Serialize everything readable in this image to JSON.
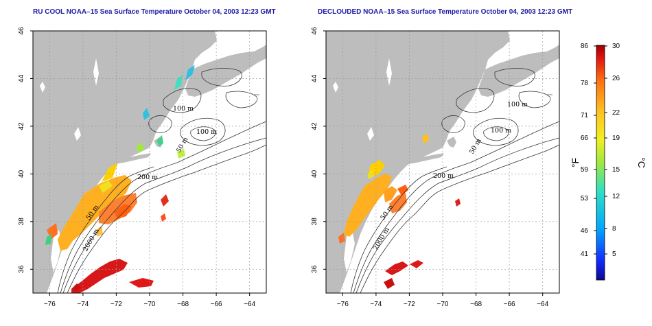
{
  "maps": [
    {
      "title": "RU COOL NOAA–15 Sea Surface Temperature October 04, 2003 12:23 GMT"
    },
    {
      "title": "DECLOUDED NOAA–15 Sea Surface Temperature October 04, 2003 12:23 GMT"
    }
  ],
  "axes": {
    "x_ticks": [
      "−76",
      "−74",
      "−72",
      "−70",
      "−68",
      "−66",
      "−64"
    ],
    "y_ticks": [
      "36",
      "38",
      "40",
      "42",
      "44",
      "46"
    ],
    "lon_range": [
      -77,
      -63
    ],
    "lat_range": [
      35,
      46
    ]
  },
  "contours": {
    "labels_map1": [
      "100 m",
      "100 m",
      "50 m",
      "200 m",
      "50 m",
      "2000 m"
    ],
    "labels_map2": [
      "100 m",
      "100 m",
      "50 m",
      "200 m",
      "50 m",
      "2000 m"
    ]
  },
  "colorbar": {
    "left_unit": "°F",
    "right_unit": "°C",
    "f_labels": [
      "86",
      "78",
      "71",
      "66",
      "59",
      "53",
      "46",
      "41"
    ],
    "c_labels": [
      "30",
      "26",
      "22",
      "19",
      "15",
      "12",
      "8",
      "5"
    ]
  },
  "colors": {
    "land": "#bdbdbd",
    "ocean": "#ffffff",
    "title": "#1a1aa6",
    "grid": "#9a9a9a"
  }
}
